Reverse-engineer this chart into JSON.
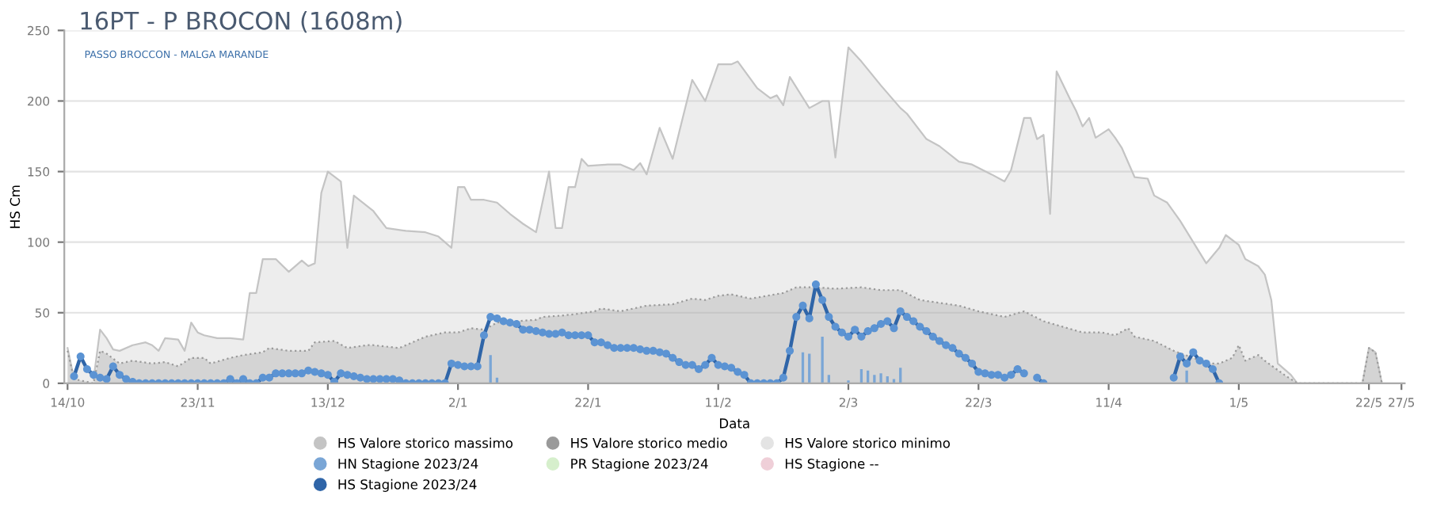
{
  "chart_data": {
    "type": "line",
    "title": "16PT - P BROCON (1608m)",
    "subtitle": "PASSO BROCCON - MALGA MARANDE",
    "xlabel": "Data",
    "ylabel": "HS Cm",
    "ylim": [
      0,
      250
    ],
    "yticks": [
      0,
      50,
      100,
      150,
      200,
      250
    ],
    "grid": "y",
    "legend": "bottom",
    "categories": [
      "14/10",
      null,
      null,
      null,
      null,
      null,
      null,
      null,
      null,
      null,
      null,
      null,
      null,
      null,
      null,
      null,
      null,
      null,
      null,
      null,
      "23/11",
      null,
      null,
      null,
      null,
      null,
      null,
      null,
      null,
      null,
      null,
      null,
      null,
      null,
      null,
      null,
      null,
      null,
      null,
      null,
      "13/12",
      null,
      null,
      null,
      null,
      null,
      null,
      null,
      null,
      null,
      null,
      null,
      null,
      null,
      null,
      null,
      null,
      null,
      null,
      null,
      "2/1",
      null,
      null,
      null,
      null,
      null,
      null,
      null,
      null,
      null,
      null,
      null,
      null,
      null,
      null,
      null,
      null,
      null,
      null,
      null,
      "22/1",
      null,
      null,
      null,
      null,
      null,
      null,
      null,
      null,
      null,
      null,
      null,
      null,
      null,
      null,
      null,
      null,
      null,
      null,
      null,
      "11/2",
      null,
      null,
      null,
      null,
      null,
      null,
      null,
      null,
      null,
      null,
      null,
      null,
      null,
      null,
      null,
      null,
      null,
      null,
      null,
      "2/3",
      null,
      null,
      null,
      null,
      null,
      null,
      null,
      null,
      null,
      null,
      null,
      null,
      null,
      null,
      null,
      null,
      null,
      null,
      null,
      "22/3",
      null,
      null,
      null,
      null,
      null,
      null,
      null,
      null,
      null,
      null,
      null,
      null,
      null,
      null,
      null,
      null,
      null,
      null,
      null,
      "11/4",
      null,
      null,
      null,
      null,
      null,
      null,
      null,
      null,
      null,
      null,
      null,
      null,
      null,
      null,
      null,
      null,
      null,
      null,
      null,
      "1/5",
      null,
      null,
      null,
      null,
      null,
      null,
      null,
      null,
      null,
      null,
      null,
      null,
      null,
      null,
      null,
      null,
      null,
      null,
      null,
      "22/5",
      null,
      null,
      null,
      null,
      "27/5"
    ],
    "series": [
      {
        "name": "HS Valore storico massimo",
        "type": "area",
        "color": "#c4c4c4",
        "values": [
          25,
          3,
          18,
          10,
          3,
          38,
          32,
          24,
          23,
          null,
          27,
          null,
          29,
          27,
          23,
          32,
          null,
          31,
          23,
          43,
          36,
          34,
          null,
          32,
          null,
          32,
          null,
          31,
          64,
          64,
          88,
          null,
          88,
          null,
          79,
          null,
          87,
          83,
          85,
          135,
          150,
          null,
          143,
          96,
          133,
          null,
          null,
          122,
          null,
          110,
          null,
          null,
          108,
          null,
          null,
          107,
          null,
          104,
          null,
          96,
          139,
          139,
          130,
          null,
          130,
          null,
          128,
          null,
          120,
          null,
          113,
          null,
          107,
          null,
          150,
          110,
          110,
          139,
          139,
          159,
          154,
          null,
          null,
          155,
          null,
          155,
          null,
          151,
          156,
          148,
          null,
          181,
          null,
          159,
          178,
          null,
          215,
          null,
          200,
          null,
          226,
          null,
          226,
          228,
          null,
          null,
          209,
          null,
          202,
          204,
          197,
          217,
          null,
          null,
          195,
          null,
          200,
          200,
          160,
          null,
          238,
          null,
          228,
          null,
          null,
          211,
          null,
          null,
          195,
          191,
          null,
          null,
          173,
          null,
          168,
          null,
          null,
          157,
          null,
          155,
          null,
          null,
          148,
          null,
          143,
          151,
          null,
          188,
          188,
          173,
          176,
          120,
          221,
          null,
          202,
          193,
          182,
          188,
          174,
          null,
          180,
          174,
          167,
          null,
          146,
          null,
          145,
          133,
          null,
          128,
          null,
          115,
          null,
          100,
          null,
          85,
          null,
          96,
          105,
          null,
          98,
          88,
          null,
          83,
          77,
          59,
          14,
          null,
          6,
          0,
          null,
          null,
          null,
          null,
          null,
          null,
          null,
          null,
          null,
          0,
          25,
          22,
          0,
          null,
          null,
          null
        ]
      },
      {
        "name": "HS Valore storico medio",
        "type": "area",
        "color": "#9a9a9a",
        "line_style": "dotted",
        "values": [
          23,
          3,
          null,
          null,
          0,
          23,
          21,
          null,
          14,
          null,
          16,
          null,
          null,
          14,
          null,
          15,
          null,
          12,
          null,
          18,
          null,
          18,
          14,
          null,
          null,
          18,
          null,
          20,
          null,
          null,
          22,
          25,
          null,
          null,
          23,
          null,
          null,
          23,
          29,
          null,
          null,
          30,
          null,
          25,
          null,
          null,
          27,
          27,
          null,
          null,
          null,
          25,
          null,
          29,
          null,
          33,
          null,
          null,
          36,
          null,
          36,
          null,
          39,
          null,
          38,
          null,
          43,
          null,
          null,
          44,
          null,
          null,
          45,
          47,
          null,
          null,
          48,
          null,
          49,
          null,
          null,
          51,
          53,
          null,
          null,
          51,
          null,
          53,
          null,
          55,
          null,
          null,
          null,
          56,
          null,
          null,
          60,
          null,
          59,
          null,
          62,
          null,
          63,
          null,
          null,
          60,
          null,
          null,
          null,
          null,
          64,
          null,
          68,
          null,
          null,
          68,
          null,
          null,
          67,
          null,
          null,
          null,
          68,
          null,
          null,
          66,
          null,
          null,
          66,
          null,
          null,
          59,
          null,
          null,
          57,
          null,
          null,
          55,
          null,
          null,
          51,
          null,
          null,
          null,
          47,
          null,
          null,
          51,
          null,
          null,
          44,
          null,
          null,
          40,
          null,
          null,
          36,
          null,
          null,
          36,
          null,
          34,
          null,
          39,
          33,
          null,
          null,
          30,
          null,
          null,
          23,
          null,
          null,
          18,
          null,
          14,
          null,
          14,
          null,
          18,
          27,
          16,
          null,
          20,
          16,
          null,
          null,
          6,
          null,
          0,
          null,
          null,
          null,
          null,
          null,
          null,
          null,
          null,
          null,
          0,
          25,
          22,
          0,
          null,
          null,
          null
        ]
      },
      {
        "name": "HS Valore storico minimo",
        "type": "area",
        "color": "#e4e4e4",
        "values": [
          null,
          null,
          null,
          null,
          null,
          null,
          null,
          null,
          null,
          null,
          null,
          null,
          null,
          null,
          null,
          null,
          null,
          null,
          null,
          null,
          null,
          null,
          null,
          null,
          null,
          null,
          null,
          null,
          null,
          null,
          null,
          null,
          null,
          null,
          null,
          null,
          null,
          null,
          null,
          null,
          null,
          null,
          null,
          null,
          null,
          null,
          null,
          null,
          null,
          null,
          null,
          null,
          null,
          null,
          null,
          null,
          null,
          null,
          null,
          null,
          null,
          null,
          null,
          null,
          null,
          null,
          null,
          null,
          null,
          null,
          null,
          null,
          null,
          null,
          null,
          null,
          null,
          null,
          null,
          null,
          null,
          null,
          null,
          null,
          null,
          null,
          null,
          null,
          null,
          null,
          null,
          null,
          null,
          null,
          null,
          null,
          null,
          null,
          null,
          null,
          null,
          null,
          null,
          null,
          null,
          null,
          null,
          null,
          null,
          null,
          null,
          null,
          null,
          null,
          null,
          null,
          null,
          null,
          null,
          null,
          null,
          null,
          null,
          null,
          null,
          null,
          null,
          null,
          null,
          null,
          null,
          null,
          null,
          null,
          null,
          null,
          null,
          null,
          null,
          null,
          null,
          null,
          null,
          null,
          null,
          null,
          null,
          null,
          null,
          null,
          null,
          null,
          null,
          null,
          null,
          null,
          null,
          null,
          null,
          null,
          null,
          null,
          null,
          null,
          null,
          null,
          null,
          null,
          null,
          null,
          null,
          null,
          null,
          null,
          null,
          null,
          null,
          null,
          null,
          null,
          null,
          null,
          null,
          null,
          null,
          null,
          null,
          null,
          null,
          null,
          null,
          null,
          null,
          null,
          null,
          null,
          null,
          null,
          null,
          null,
          null,
          null,
          null,
          null,
          null,
          null
        ]
      },
      {
        "name": "HN Stagione 2023/24",
        "type": "bar",
        "color": "#7aa6d6",
        "values": [
          null,
          null,
          null,
          null,
          null,
          null,
          null,
          null,
          null,
          null,
          null,
          null,
          null,
          null,
          null,
          null,
          null,
          null,
          null,
          null,
          null,
          null,
          null,
          null,
          null,
          null,
          null,
          null,
          null,
          null,
          null,
          null,
          null,
          null,
          null,
          null,
          null,
          null,
          null,
          null,
          null,
          null,
          null,
          null,
          null,
          null,
          null,
          null,
          null,
          null,
          null,
          null,
          null,
          null,
          null,
          null,
          null,
          null,
          null,
          null,
          null,
          null,
          null,
          null,
          null,
          20,
          4,
          null,
          null,
          null,
          null,
          null,
          null,
          null,
          null,
          null,
          null,
          null,
          null,
          null,
          null,
          null,
          null,
          null,
          null,
          null,
          null,
          null,
          null,
          null,
          null,
          null,
          null,
          null,
          null,
          null,
          null,
          null,
          null,
          null,
          null,
          null,
          null,
          null,
          null,
          null,
          null,
          null,
          null,
          null,
          null,
          null,
          null,
          22,
          21,
          null,
          33,
          6,
          null,
          null,
          2,
          null,
          10,
          9,
          6,
          7,
          5,
          3,
          11,
          null,
          null,
          null,
          null,
          null,
          null,
          null,
          null,
          null,
          null,
          null,
          null,
          null,
          null,
          null,
          null,
          null,
          null,
          null,
          null,
          null,
          null,
          null,
          null,
          null,
          null,
          null,
          null,
          null,
          null,
          null,
          null,
          null,
          null,
          null,
          null,
          null,
          null,
          null,
          null,
          null,
          null,
          null,
          9,
          null,
          null,
          null,
          null,
          null,
          null,
          null,
          null,
          null,
          null,
          null,
          null,
          null,
          null,
          null,
          null,
          null,
          null,
          null,
          null,
          null,
          null,
          null,
          null,
          null,
          null,
          null,
          null,
          null,
          null,
          null,
          null,
          null
        ]
      },
      {
        "name": "PR Stagione 2023/24",
        "type": "bar",
        "color": "#d6efcc",
        "values": [
          null,
          null,
          null,
          null,
          null,
          null,
          null,
          null,
          null,
          null,
          null,
          null,
          null,
          null,
          null,
          null,
          null,
          null,
          null,
          null,
          null,
          null,
          null,
          null,
          null,
          null,
          null,
          null,
          null,
          null,
          null,
          null,
          null,
          null,
          null,
          null,
          null,
          null,
          null,
          null,
          null,
          null,
          null,
          null,
          null,
          null,
          null,
          null,
          null,
          null,
          null,
          null,
          null,
          null,
          null,
          null,
          null,
          null,
          null,
          null,
          null,
          null,
          null,
          null,
          null,
          null,
          null,
          null,
          null,
          null,
          null,
          null,
          null,
          null,
          null,
          null,
          null,
          null,
          null,
          null,
          null,
          null,
          null,
          null,
          null,
          null,
          null,
          null,
          null,
          null,
          null,
          null,
          null,
          null,
          null,
          null,
          null,
          null,
          null,
          null,
          null,
          null,
          null,
          null,
          null,
          null,
          null,
          null,
          null,
          null,
          null,
          null,
          null,
          null,
          null,
          null,
          null,
          null,
          null,
          null,
          null,
          null,
          null,
          null,
          null,
          null,
          null,
          null,
          null,
          null,
          null,
          null,
          null,
          null,
          null,
          null,
          null,
          null,
          null,
          null,
          null,
          null,
          null,
          null,
          null,
          null,
          null,
          null,
          null,
          null,
          null,
          null,
          null,
          null,
          null,
          null,
          null,
          null,
          null,
          null,
          null,
          null,
          null,
          null,
          null,
          null,
          null,
          null,
          null,
          null,
          null,
          null,
          null,
          null,
          null,
          null,
          null,
          null,
          null,
          null,
          null,
          null,
          null,
          null,
          null,
          null,
          null,
          null,
          null,
          null,
          null,
          null,
          null,
          null,
          null,
          null,
          null,
          null,
          null,
          null,
          null,
          null,
          null,
          null,
          null,
          null
        ]
      },
      {
        "name": "HS Stagione --",
        "type": "line",
        "color": "#efcfd8",
        "values": [
          null,
          null,
          null,
          null,
          null,
          null,
          null,
          null,
          null,
          null,
          null,
          null,
          null,
          null,
          null,
          null,
          null,
          null,
          null,
          null,
          null,
          null,
          null,
          null,
          null,
          null,
          null,
          null,
          null,
          null,
          null,
          null,
          null,
          null,
          null,
          null,
          null,
          null,
          null,
          null,
          null,
          null,
          null,
          null,
          null,
          null,
          null,
          null,
          null,
          null,
          null,
          null,
          null,
          null,
          null,
          null,
          null,
          null,
          null,
          null,
          null,
          null,
          null,
          null,
          null,
          null,
          null,
          null,
          null,
          null,
          null,
          null,
          null,
          null,
          null,
          null,
          null,
          null,
          null,
          null,
          null,
          null,
          null,
          null,
          null,
          null,
          null,
          null,
          null,
          null,
          null,
          null,
          null,
          null,
          null,
          null,
          null,
          null,
          null,
          null,
          null,
          null,
          null,
          null,
          null,
          null,
          null,
          null,
          null,
          null,
          null,
          null,
          null,
          null,
          null,
          null,
          null,
          null,
          null,
          null,
          null,
          null,
          null,
          null,
          null,
          null,
          null,
          null,
          null,
          null,
          null,
          null,
          null,
          null,
          null,
          null,
          null,
          null,
          null,
          null,
          null,
          null,
          null,
          null,
          null,
          null,
          null,
          null,
          null,
          null,
          null,
          null,
          null,
          null,
          null,
          null,
          null,
          null,
          null,
          null,
          null,
          null,
          null,
          null,
          null,
          null,
          null,
          null,
          null,
          null,
          null,
          null,
          null,
          null,
          null,
          null,
          null,
          null,
          null,
          null,
          null,
          null,
          null,
          null,
          null,
          null,
          null,
          null,
          null,
          null,
          null,
          null,
          null,
          null,
          null,
          null,
          null,
          null,
          null,
          null,
          null,
          null,
          null,
          null,
          null,
          null
        ]
      },
      {
        "name": "HS Stagione 2023/24",
        "color": "#2f65a8",
        "marker": "circle",
        "values": [
          null,
          5,
          19,
          10,
          6,
          4,
          3,
          12,
          6,
          3,
          1,
          0,
          0,
          0,
          0,
          0,
          0,
          0,
          0,
          0,
          0,
          0,
          0,
          0,
          0,
          3,
          0,
          3,
          0,
          0,
          4,
          4,
          7,
          7,
          7,
          7,
          7,
          9,
          8,
          7,
          6,
          1,
          7,
          6,
          5,
          4,
          3,
          3,
          3,
          3,
          3,
          2,
          0,
          0,
          0,
          0,
          0,
          0,
          0,
          14,
          13,
          12,
          12,
          12,
          34,
          47,
          46,
          44,
          43,
          42,
          38,
          38,
          37,
          36,
          35,
          35,
          36,
          34,
          34,
          34,
          34,
          29,
          29,
          27,
          25,
          25,
          25,
          25,
          24,
          23,
          23,
          22,
          21,
          18,
          15,
          13,
          13,
          10,
          13,
          18,
          13,
          12,
          11,
          8,
          6,
          0,
          0,
          0,
          0,
          0,
          4,
          23,
          47,
          55,
          46,
          70,
          59,
          47,
          40,
          36,
          33,
          38,
          33,
          37,
          39,
          42,
          44,
          39,
          51,
          47,
          44,
          40,
          37,
          33,
          30,
          27,
          25,
          21,
          18,
          14,
          8,
          7,
          6,
          6,
          4,
          6,
          10,
          7,
          null,
          4,
          0,
          null,
          null,
          null,
          null,
          null,
          null,
          null,
          null,
          null,
          null,
          null,
          null,
          null,
          null,
          null,
          null,
          null,
          null,
          null,
          4,
          19,
          14,
          22,
          16,
          14,
          10,
          0,
          null,
          null,
          null,
          null,
          null,
          null,
          null,
          null,
          null,
          null,
          null,
          null,
          null,
          null,
          null,
          null,
          null,
          null,
          null,
          null,
          null,
          null,
          null,
          null,
          null,
          null,
          null,
          null
        ]
      }
    ]
  }
}
